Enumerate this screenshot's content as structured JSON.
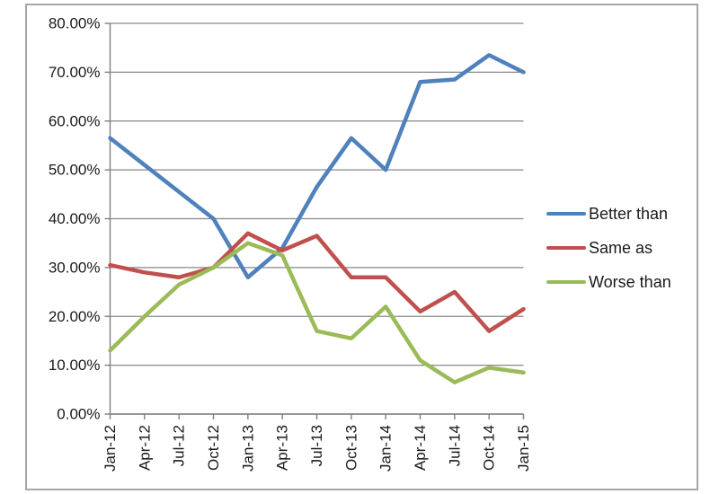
{
  "chart_data": {
    "type": "line",
    "title": "",
    "xlabel": "",
    "ylabel": "",
    "categories": [
      "Jan-12",
      "Apr-12",
      "Jul-12",
      "Oct-12",
      "Jan-13",
      "Apr-13",
      "Jul-13",
      "Oct-13",
      "Jan-14",
      "Apr-14",
      "Jul-14",
      "Oct-14",
      "Jan-15"
    ],
    "series": [
      {
        "name": "Better than",
        "color": "#4F81BD",
        "values": [
          56.5,
          51,
          45.5,
          40,
          28,
          34,
          46.5,
          56.5,
          50,
          68,
          68.5,
          73.5,
          70
        ]
      },
      {
        "name": "Same as",
        "color": "#C0504D",
        "values": [
          30.5,
          29,
          28,
          30,
          37,
          33.5,
          36.5,
          28,
          28,
          21,
          25,
          17,
          21.5
        ]
      },
      {
        "name": "Worse than",
        "color": "#9BBB59",
        "values": [
          13,
          20,
          26.5,
          30,
          35,
          32.5,
          17,
          15.5,
          22,
          11,
          6.5,
          9.5,
          8.5
        ]
      }
    ],
    "ylim": [
      0,
      80
    ],
    "y_tick_step": 10,
    "y_tick_labels": [
      "0.00%",
      "10.00%",
      "20.00%",
      "30.00%",
      "40.00%",
      "50.00%",
      "60.00%",
      "70.00%",
      "80.00%"
    ],
    "grid": true,
    "legend_position": "right"
  },
  "style": {
    "background": "#FFFFFF",
    "border_color": "#A6A6A6",
    "gridline_color": "#878787",
    "axis_color": "#7F7F7F",
    "text_color": "#1A1A1A",
    "line_width": 4.5
  }
}
